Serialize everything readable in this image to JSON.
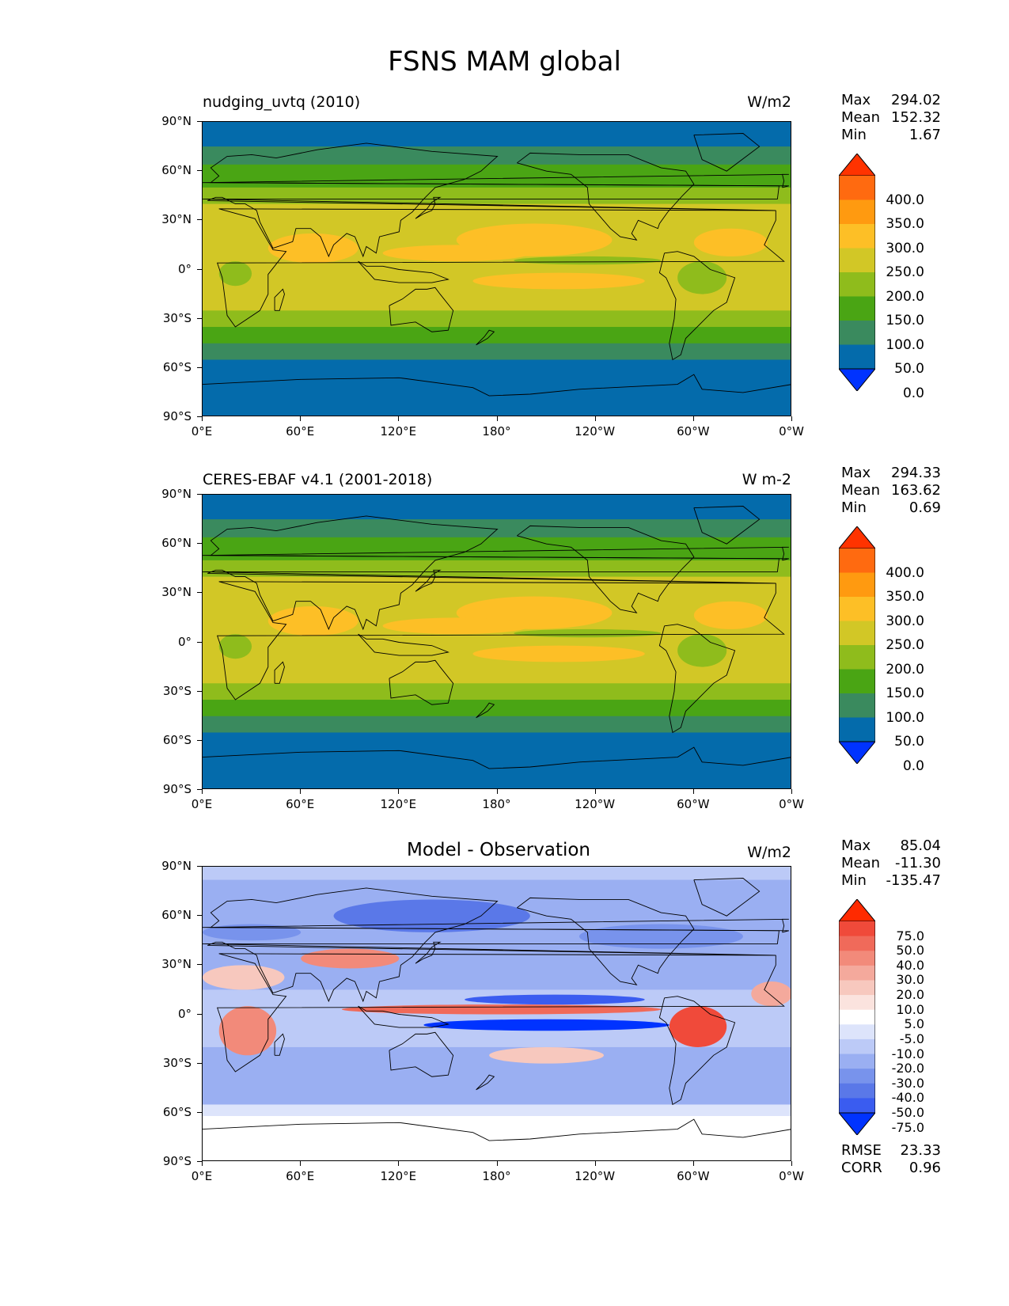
{
  "suptitle": "FSNS MAM global",
  "lat_labels": [
    "90°N",
    "60°N",
    "30°N",
    "0°",
    "30°S",
    "60°S",
    "90°S"
  ],
  "lon_labels": [
    "0°E",
    "60°E",
    "120°E",
    "180°",
    "120°W",
    "60°W",
    "0°W"
  ],
  "panels": [
    {
      "title": "nudging_uvtq (2010)",
      "units": "W/m2",
      "stats": [
        {
          "label": "Max",
          "value": "294.02"
        },
        {
          "label": "Mean",
          "value": "152.32"
        },
        {
          "label": "Min",
          "value": "1.67"
        }
      ],
      "colorbar": {
        "labels": [
          "400.0",
          "350.0",
          "300.0",
          "250.0",
          "200.0",
          "150.0",
          "100.0",
          "50.0",
          "0.0"
        ],
        "colors": [
          "#ff3300",
          "#ff6a10",
          "#ff9a10",
          "#fdbf26",
          "#d2c726",
          "#8fbc1c",
          "#4aa514",
          "#3a8a5e",
          "#046bab",
          "#0033ff"
        ]
      }
    },
    {
      "title": "CERES-EBAF v4.1 (2001-2018)",
      "units": "W m-2",
      "stats": [
        {
          "label": "Max",
          "value": "294.33"
        },
        {
          "label": "Mean",
          "value": "163.62"
        },
        {
          "label": "Min",
          "value": "0.69"
        }
      ],
      "colorbar": {
        "labels": [
          "400.0",
          "350.0",
          "300.0",
          "250.0",
          "200.0",
          "150.0",
          "100.0",
          "50.0",
          "0.0"
        ],
        "colors": [
          "#ff3300",
          "#ff6a10",
          "#ff9a10",
          "#fdbf26",
          "#d2c726",
          "#8fbc1c",
          "#4aa514",
          "#3a8a5e",
          "#046bab",
          "#0033ff"
        ]
      }
    },
    {
      "title": "Model - Observation",
      "units": "W/m2",
      "stats": [
        {
          "label": "Max",
          "value": "85.04"
        },
        {
          "label": "Mean",
          "value": "-11.30"
        },
        {
          "label": "Min",
          "value": "-135.47"
        }
      ],
      "colorbar": {
        "labels": [
          "75.0",
          "50.0",
          "40.0",
          "30.0",
          "20.0",
          "10.0",
          "5.0",
          "-5.0",
          "-10.0",
          "-20.0",
          "-30.0",
          "-40.0",
          "-50.0",
          "-75.0"
        ],
        "colors": [
          "#ff2a00",
          "#f04a3a",
          "#f06a5a",
          "#f28a7a",
          "#f4a99c",
          "#f7c8be",
          "#fbe3de",
          "#ffffff",
          "#dde4fb",
          "#bccaf7",
          "#9aaff2",
          "#7893ec",
          "#5a78e8",
          "#3a5cf0",
          "#0033ff"
        ]
      },
      "metrics": [
        {
          "label": "RMSE",
          "value": "23.33"
        },
        {
          "label": "CORR",
          "value": "0.96"
        }
      ]
    }
  ],
  "chart_data": [
    {
      "type": "heatmap",
      "title": "nudging_uvtq (2010)",
      "variable": "FSNS",
      "season": "MAM",
      "units": "W/m2",
      "stats": {
        "max": 294.02,
        "mean": 152.32,
        "min": 1.67
      },
      "colorbar_levels": [
        0,
        50,
        100,
        150,
        200,
        250,
        300,
        350,
        400
      ],
      "colormap": "cet_rainbow",
      "projection": "PlateCarree",
      "xlim": [
        0,
        360
      ],
      "ylim": [
        -90,
        90
      ]
    },
    {
      "type": "heatmap",
      "title": "CERES-EBAF v4.1 (2001-2018)",
      "variable": "FSNS",
      "season": "MAM",
      "units": "W m-2",
      "stats": {
        "max": 294.33,
        "mean": 163.62,
        "min": 0.69
      },
      "colorbar_levels": [
        0,
        50,
        100,
        150,
        200,
        250,
        300,
        350,
        400
      ],
      "projection": "PlateCarree",
      "xlim": [
        0,
        360
      ],
      "ylim": [
        -90,
        90
      ]
    },
    {
      "type": "heatmap",
      "title": "Model - Observation",
      "units": "W/m2",
      "stats": {
        "max": 85.04,
        "mean": -11.3,
        "min": -135.47,
        "rmse": 23.33,
        "corr": 0.96
      },
      "colorbar_levels": [
        -75,
        -50,
        -40,
        -30,
        -20,
        -10,
        -5,
        5,
        10,
        20,
        30,
        40,
        50,
        75
      ],
      "projection": "PlateCarree",
      "xlim": [
        0,
        360
      ],
      "ylim": [
        -90,
        90
      ]
    }
  ]
}
